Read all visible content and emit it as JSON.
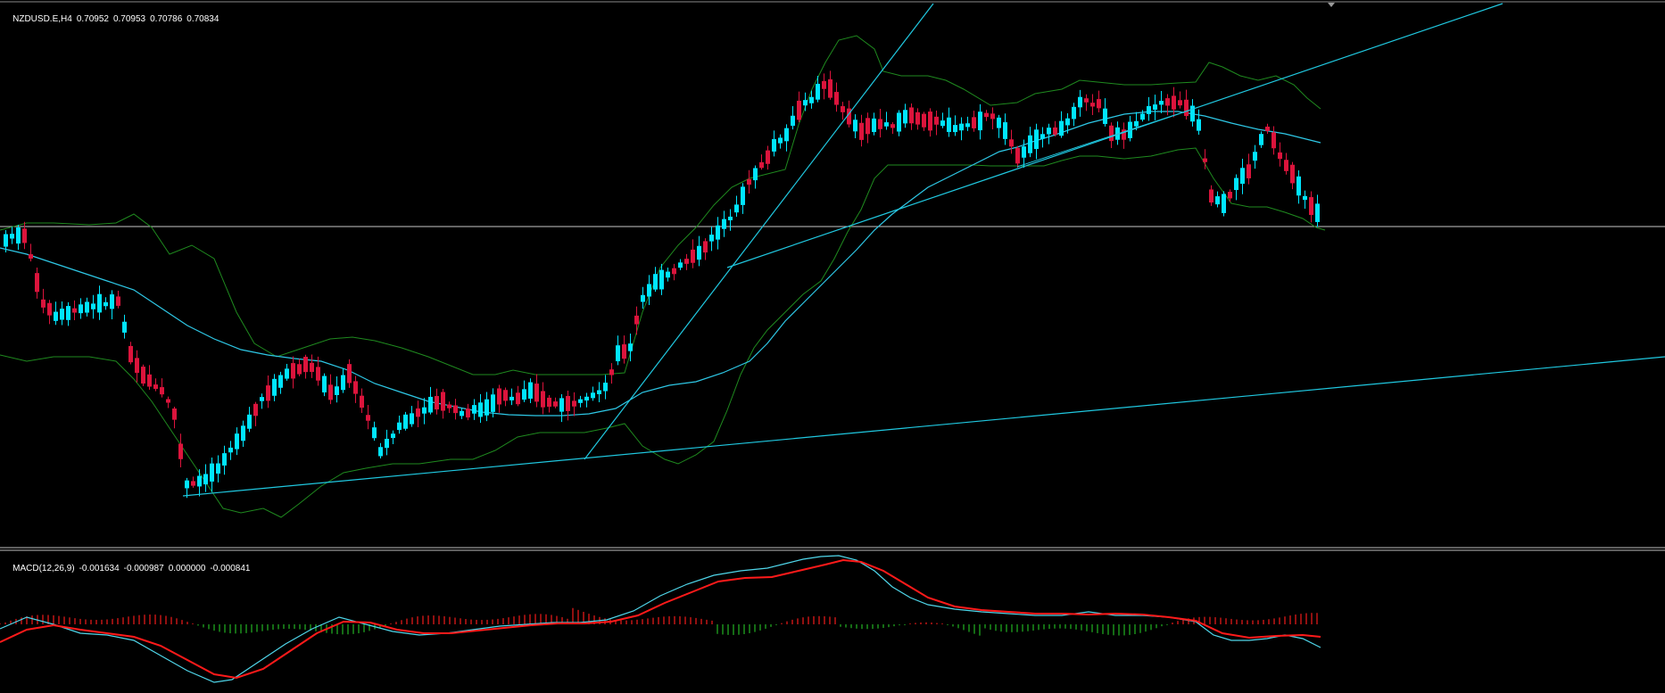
{
  "main_header": {
    "symbol": "NZDUSD.E,H4",
    "open": "0.70952",
    "high": "0.70953",
    "low": "0.70786",
    "close": "0.70834"
  },
  "macd_header": {
    "name": "MACD(12,26,9)",
    "v1": "-0.001634",
    "v2": "-0.000987",
    "v3": "0.000000",
    "v4": "-0.000841"
  },
  "colors": {
    "background": "#000000",
    "bull": "#00e5ff",
    "bear": "#dc143c",
    "bollinger": "#1f8a1f",
    "moving_average": "#2ec8e6",
    "trendline": "#20c8e0",
    "horizontal_line": "#c8c8c8",
    "macd_line": "#4fd6ea",
    "signal_line": "#ff1a1a",
    "hist_positive": "#d01818",
    "hist_negative": "#1e9a1e"
  },
  "chart_data": [
    {
      "type": "candlestick",
      "symbol": "NZDUSD.E",
      "timeframe": "H4",
      "last_bar": {
        "open": 0.70952,
        "high": 0.70953,
        "low": 0.70786,
        "close": 0.70834
      },
      "indicators": [
        "Bollinger Bands",
        "Moving Average"
      ],
      "objects": [
        "trendlines",
        "horizontal line"
      ]
    },
    {
      "type": "line",
      "name": "MACD(12,26,9)",
      "values": [
        -0.001634,
        -0.000987,
        0.0,
        -0.000841
      ],
      "series": [
        "MACD",
        "Signal",
        "Histogram"
      ]
    }
  ]
}
